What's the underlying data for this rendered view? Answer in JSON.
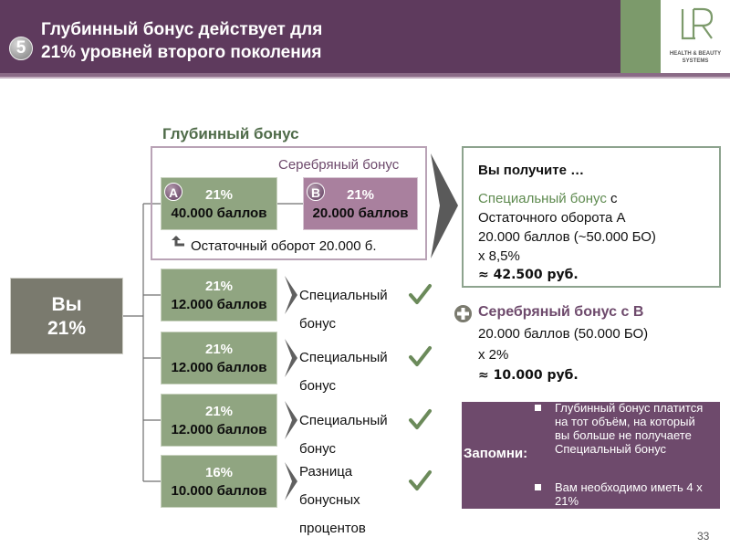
{
  "header": {
    "number": "5",
    "title_line1": "Глубинный бонус действует для",
    "title_line2": "21% уровней второго поколения",
    "logo_text": "LR",
    "logo_sub1": "HEALTH & BEAUTY",
    "logo_sub2": "SYSTEMS"
  },
  "section_title": "Глубинный бонус",
  "silver": {
    "title": "Серебряный бонус",
    "box_a": {
      "badge": "A",
      "percent": "21%",
      "points": "40.000 баллов"
    },
    "box_b": {
      "badge": "B",
      "percent": "21%",
      "points": "20.000 баллов"
    },
    "residual": "Остаточный оборот 20.000 б."
  },
  "you": {
    "line1": "Вы",
    "line2": "21%"
  },
  "branches": [
    {
      "percent": "21%",
      "points": "12.000 баллов",
      "label_line1": "Специальный",
      "label_line2": "бонус"
    },
    {
      "percent": "21%",
      "points": "12.000 баллов",
      "label_line1": "Специальный",
      "label_line2": "бонус"
    },
    {
      "percent": "21%",
      "points": "12.000 баллов",
      "label_line1": "Специальный",
      "label_line2": "бонус"
    },
    {
      "percent": "16%",
      "points": "10.000 баллов",
      "label_line1": "Разница",
      "label_line2": "бонусных",
      "label_line3": "процентов"
    }
  ],
  "result": {
    "head": "Вы получите …",
    "special_green": "Специальный бонус",
    "special_rest": " с",
    "line2": "Остаточного оборота А",
    "line3": "20.000 баллов (~50.000 БО)",
    "line4": "x 8,5%",
    "line5": "≈ 42.500 руб.",
    "silver_head": "Серебряный бонус с В",
    "silver_line2": "20.000 баллов (50.000 БО)",
    "silver_line3": "x 2%",
    "silver_line4": "≈ 10.000 руб."
  },
  "remember": {
    "label": "Запомни:",
    "items": [
      "Глубинный бонус платится на тот объём, на который вы больше не получаете Специальный бонус",
      "Вам необходимо иметь 4 x 21%"
    ]
  },
  "page_number": "33",
  "colors": {
    "header": "#5e3a5d",
    "green_box": "#90a581",
    "purple_box": "#a9809e",
    "you_box": "#7a7a6e",
    "accent_green": "#5e8a4f"
  }
}
